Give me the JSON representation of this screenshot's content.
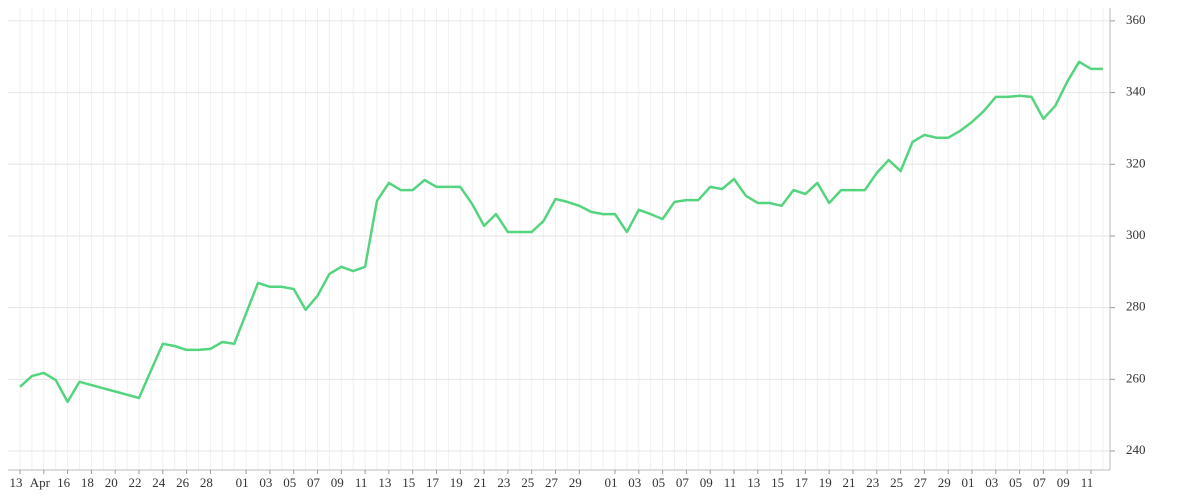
{
  "chart_data": {
    "type": "line",
    "categories": [
      "13",
      null,
      "Apr",
      null,
      "16",
      null,
      "18",
      null,
      "20",
      null,
      "22",
      null,
      "24",
      null,
      "26",
      null,
      "28",
      null,
      null,
      "01",
      null,
      "03",
      null,
      "05",
      null,
      "07",
      null,
      "09",
      null,
      "11",
      null,
      "13",
      null,
      "15",
      null,
      "17",
      null,
      "19",
      null,
      "21",
      null,
      "23",
      null,
      "25",
      null,
      "27",
      null,
      "29",
      null,
      null,
      "01",
      null,
      "03",
      null,
      "05",
      null,
      "07",
      null,
      "09",
      null,
      "11",
      null,
      "13",
      null,
      "15",
      null,
      "17",
      null,
      "19",
      null,
      "21",
      null,
      "23",
      null,
      "25",
      null,
      "27",
      null,
      "29",
      null,
      "01",
      null,
      "03",
      null,
      "05",
      null,
      "07",
      null,
      "09",
      null,
      "11",
      null
    ],
    "values": [
      257.9,
      260.9,
      261.8,
      259.8,
      253.7,
      259.3,
      258.4,
      257.5,
      256.6,
      255.7,
      254.8,
      262.4,
      269.9,
      269.3,
      268.2,
      268.2,
      268.5,
      270.4,
      269.9,
      278.4,
      286.9,
      285.8,
      285.8,
      285.2,
      279.4,
      283.3,
      289.4,
      291.4,
      290.2,
      291.4,
      309.8,
      314.8,
      312.8,
      312.8,
      315.6,
      313.7,
      313.7,
      313.7,
      308.9,
      302.8,
      306.1,
      301.1,
      301.1,
      301.1,
      304.2,
      310.3,
      309.5,
      308.4,
      306.7,
      306.1,
      306.1,
      301.1,
      307.3,
      306.1,
      304.7,
      309.5,
      310.0,
      310.0,
      313.7,
      313.1,
      315.9,
      311.2,
      309.2,
      309.2,
      308.4,
      312.8,
      311.7,
      314.8,
      309.2,
      312.8,
      312.8,
      312.8,
      317.6,
      321.2,
      318.1,
      326.2,
      328.2,
      327.4,
      327.4,
      329.3,
      331.8,
      334.9,
      338.8,
      338.8,
      339.1,
      338.8,
      332.7,
      336.3,
      343.0,
      348.6,
      346.6,
      346.6
    ],
    "color": "#55d47f",
    "ylim": [
      234.7,
      363.6
    ],
    "yticks": [
      240,
      260,
      280,
      300,
      320,
      340,
      360
    ],
    "grid": true
  }
}
